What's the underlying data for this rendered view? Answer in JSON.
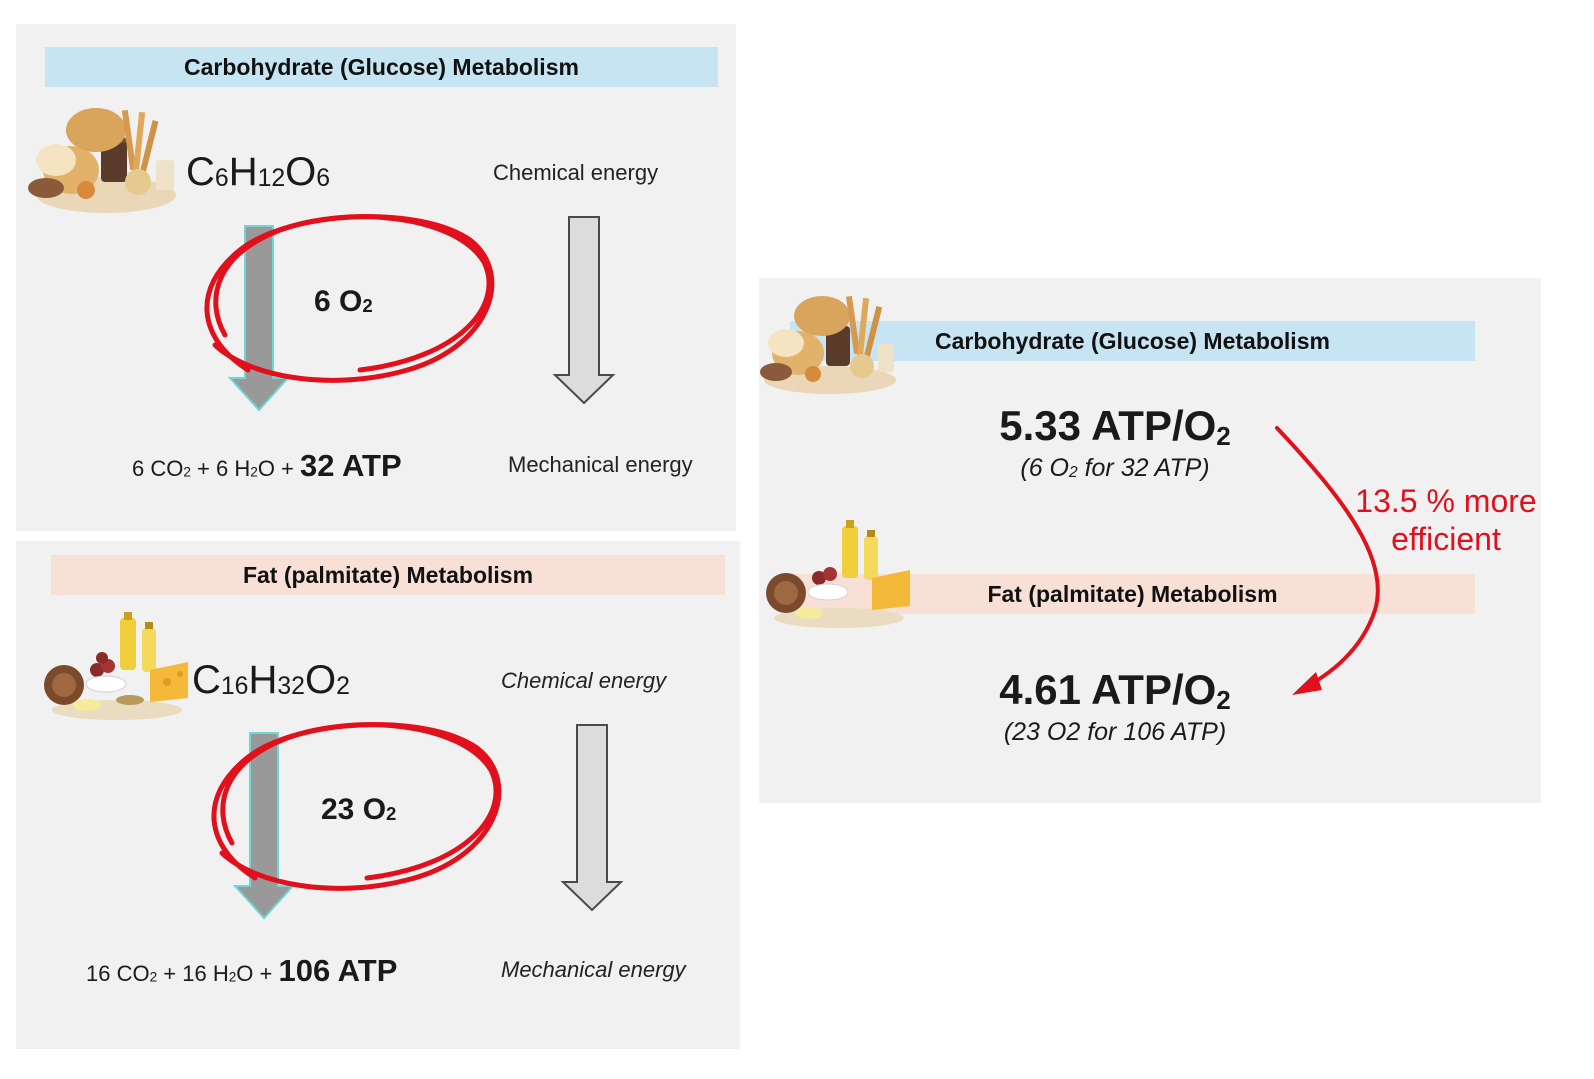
{
  "carb_panel": {
    "title": "Carbohydrate (Glucose) Metabolism",
    "food_icon": "bread-pastry-illustration",
    "formula": {
      "c": "C",
      "c_n": "6",
      "h": "H",
      "h_n": "12",
      "o": "O",
      "o_n": "6"
    },
    "chemical_energy": "Chemical energy",
    "mechanical_energy": "Mechanical energy",
    "oxygen": {
      "count": "6 O",
      "sub": "2"
    },
    "products": {
      "co2": "6 CO",
      "co2_sub": "2",
      "h2o_a": " + 6 H",
      "h2o_sub": "2",
      "h2o_b": "O + ",
      "atp": "32 ATP"
    }
  },
  "fat_panel": {
    "title": "Fat (palmitate) Metabolism",
    "food_icon": "oil-cheese-coconut-illustration",
    "formula": {
      "c": "C",
      "c_n": "16",
      "h": "H",
      "h_n": "32",
      "o": "O",
      "o_n": "2"
    },
    "chemical_energy": "Chemical energy",
    "mechanical_energy": "Mechanical energy",
    "oxygen": {
      "count": "23 O",
      "sub": "2"
    },
    "products": {
      "co2": "16 CO",
      "co2_sub": "2",
      "h2o_a": " + 16 H",
      "h2o_sub": "2",
      "h2o_b": "O + ",
      "atp": "106 ATP"
    }
  },
  "summary_panel": {
    "carb_title": "Carbohydrate (Glucose) Metabolism",
    "carb_ratio": {
      "main": "5.33 ATP/O",
      "sub": "2"
    },
    "carb_note": {
      "a": "(6 O",
      "sub": "2",
      "b": " for 32 ATP)"
    },
    "fat_title": "Fat (palmitate) Metabolism",
    "fat_ratio": {
      "main": "4.61 ATP/O",
      "sub": "2"
    },
    "fat_note": "(23 O2 for 106 ATP)",
    "efficiency_line1": "13.5 % more",
    "efficiency_line2": "efficient"
  },
  "colors": {
    "carb_banner": "#c6e4f2",
    "fat_banner": "#f8e0d6",
    "highlight_red": "#e0101c",
    "panel_bg": "#f1f1f1"
  }
}
